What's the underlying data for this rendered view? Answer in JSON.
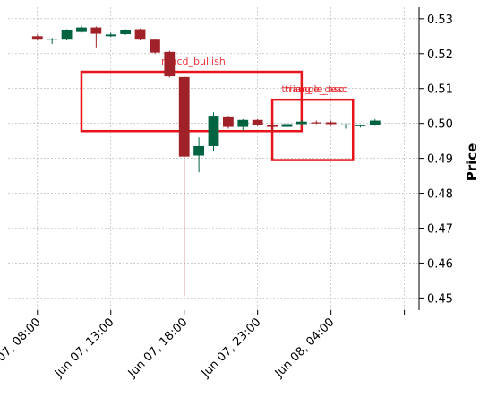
{
  "chart_data": {
    "type": "candlestick",
    "ylabel": "Price",
    "y_axis_side": "right",
    "ylim": [
      0.4465,
      0.5333
    ],
    "grid": true,
    "x_ticks": [
      {
        "label": "Jun 07, 08:00",
        "at": "2024-06-07 08:00"
      },
      {
        "label": "Jun 07, 13:00",
        "at": "2024-06-07 13:00"
      },
      {
        "label": "Jun 07, 18:00",
        "at": "2024-06-07 18:00"
      },
      {
        "label": "Jun 07, 23:00",
        "at": "2024-06-07 23:00"
      },
      {
        "label": "Jun 08, 04:00",
        "at": "2024-06-08 04:00"
      },
      {
        "label": "",
        "at": "2024-06-08 09:00"
      }
    ],
    "xlim": [
      "2024-06-07 06:00",
      "2024-06-08 10:00"
    ],
    "y_ticks": [
      0.45,
      0.46,
      0.47,
      0.48,
      0.49,
      0.5,
      0.51,
      0.52,
      0.53
    ],
    "candles": [
      {
        "t": "2024-06-07 08:00",
        "o": 0.525,
        "h": 0.5255,
        "l": 0.5238,
        "c": 0.524
      },
      {
        "t": "2024-06-07 09:00",
        "o": 0.5241,
        "h": 0.5245,
        "l": 0.5228,
        "c": 0.5243
      },
      {
        "t": "2024-06-07 10:00",
        "o": 0.524,
        "h": 0.527,
        "l": 0.5238,
        "c": 0.5267
      },
      {
        "t": "2024-06-07 11:00",
        "o": 0.5262,
        "h": 0.528,
        "l": 0.526,
        "c": 0.5275
      },
      {
        "t": "2024-06-07 12:00",
        "o": 0.5275,
        "h": 0.5278,
        "l": 0.5218,
        "c": 0.5257
      },
      {
        "t": "2024-06-07 13:00",
        "o": 0.525,
        "h": 0.526,
        "l": 0.5248,
        "c": 0.5255
      },
      {
        "t": "2024-06-07 14:00",
        "o": 0.5256,
        "h": 0.527,
        "l": 0.5254,
        "c": 0.5268
      },
      {
        "t": "2024-06-07 15:00",
        "o": 0.527,
        "h": 0.5272,
        "l": 0.5238,
        "c": 0.524
      },
      {
        "t": "2024-06-07 16:00",
        "o": 0.524,
        "h": 0.5242,
        "l": 0.52,
        "c": 0.5203
      },
      {
        "t": "2024-06-07 17:00",
        "o": 0.5205,
        "h": 0.5208,
        "l": 0.5132,
        "c": 0.5135
      },
      {
        "t": "2024-06-07 18:00",
        "o": 0.5133,
        "h": 0.5135,
        "l": 0.4505,
        "c": 0.4905
      },
      {
        "t": "2024-06-07 19:00",
        "o": 0.4908,
        "h": 0.496,
        "l": 0.486,
        "c": 0.4935
      },
      {
        "t": "2024-06-07 20:00",
        "o": 0.4935,
        "h": 0.5032,
        "l": 0.492,
        "c": 0.5022
      },
      {
        "t": "2024-06-07 21:00",
        "o": 0.502,
        "h": 0.5022,
        "l": 0.4985,
        "c": 0.499
      },
      {
        "t": "2024-06-07 22:00",
        "o": 0.499,
        "h": 0.5012,
        "l": 0.498,
        "c": 0.501
      },
      {
        "t": "2024-06-07 23:00",
        "o": 0.501,
        "h": 0.5012,
        "l": 0.4992,
        "c": 0.4995
      },
      {
        "t": "2024-06-08 00:00",
        "o": 0.4995,
        "h": 0.4998,
        "l": 0.4975,
        "c": 0.499
      },
      {
        "t": "2024-06-08 01:00",
        "o": 0.499,
        "h": 0.5002,
        "l": 0.4985,
        "c": 0.4998
      },
      {
        "t": "2024-06-08 02:00",
        "o": 0.4998,
        "h": 0.501,
        "l": 0.4995,
        "c": 0.5005
      },
      {
        "t": "2024-06-08 03:00",
        "o": 0.5003,
        "h": 0.5008,
        "l": 0.4998,
        "c": 0.5
      },
      {
        "t": "2024-06-08 04:00",
        "o": 0.5003,
        "h": 0.5008,
        "l": 0.4993,
        "c": 0.4998
      },
      {
        "t": "2024-06-08 05:00",
        "o": 0.4995,
        "h": 0.4998,
        "l": 0.4985,
        "c": 0.4997
      },
      {
        "t": "2024-06-08 06:00",
        "o": 0.4993,
        "h": 0.4997,
        "l": 0.4988,
        "c": 0.4995
      },
      {
        "t": "2024-06-08 07:00",
        "o": 0.4995,
        "h": 0.5012,
        "l": 0.4993,
        "c": 0.5008
      }
    ],
    "patterns": [
      {
        "label": "macd_bullish",
        "t0": "2024-06-07 11:00",
        "t1": "2024-06-08 02:00",
        "y_top": 0.5148,
        "y_bottom": 0.4978
      },
      {
        "label": "triangle_desc",
        "t0": "2024-06-08 00:00",
        "t1": "2024-06-08 05:30",
        "y_top": 0.5068,
        "y_bottom": 0.4895
      },
      {
        "label": "triangle_asc",
        "t0": "2024-06-08 00:00",
        "t1": "2024-06-08 05:30",
        "y_top": 0.5068,
        "y_bottom": 0.4895
      }
    ],
    "colors": {
      "up": "#006340",
      "down": "#A02128",
      "pattern": "#E8141B",
      "grid": "#b0b0b0"
    }
  }
}
